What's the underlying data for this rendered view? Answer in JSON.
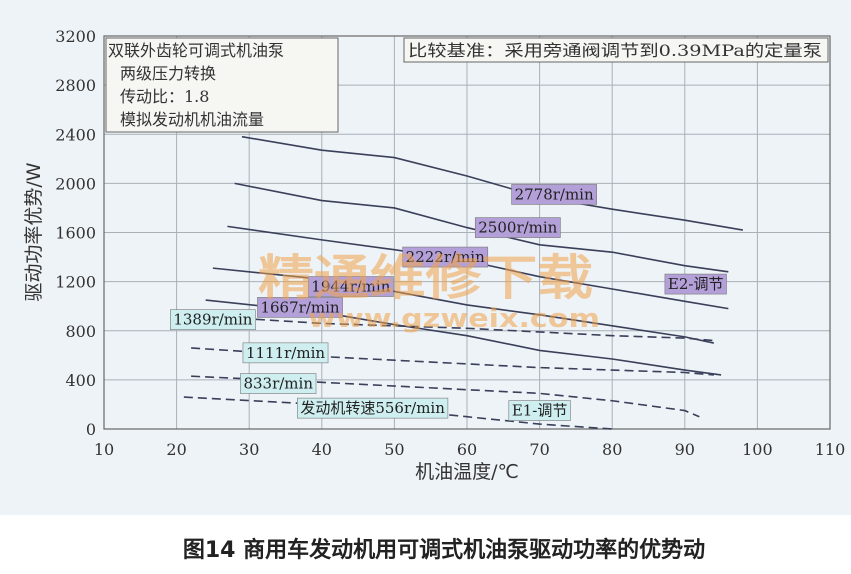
{
  "chart_data": {
    "type": "line",
    "xlabel": "机油温度/℃",
    "ylabel": "驱动功率优势/W",
    "xlim": [
      10,
      110
    ],
    "ylim": [
      0,
      3200
    ],
    "xticks": [
      10,
      20,
      30,
      40,
      50,
      60,
      70,
      80,
      90,
      100,
      110
    ],
    "yticks": [
      0,
      400,
      800,
      1200,
      1600,
      2000,
      2400,
      2800,
      3200
    ],
    "grid": true,
    "info_box_left": [
      "双联外齿轮可调式机油泵",
      "两级压力转换",
      "传动比：1.8",
      "模拟发动机机油流量"
    ],
    "info_box_right": "比较基准：采用旁通阀调节到0.39MPa的定量泵",
    "caption": "图14 商用车发动机用可调式机油泵驱动功率的优势动",
    "watermark": [
      "精通维修下载",
      "www.gzweix.com"
    ],
    "region_labels": [
      {
        "text": "E2-调节",
        "x": 91.5,
        "y": 1180,
        "color": "#b3a0d9"
      },
      {
        "text": "E1-调节",
        "x": 70,
        "y": 150,
        "color": "#cfeef0"
      }
    ],
    "series": [
      {
        "name": "2778r/min",
        "style": "solid",
        "label_at": [
          72,
          1910
        ],
        "label_color": "#b3a0d9",
        "x": [
          29,
          40,
          50,
          60,
          70,
          80,
          90,
          98
        ],
        "y": [
          2380,
          2270,
          2210,
          2060,
          1890,
          1790,
          1700,
          1620
        ]
      },
      {
        "name": "2500r/min",
        "style": "solid",
        "label_at": [
          67,
          1640
        ],
        "label_color": "#b3a0d9",
        "x": [
          28,
          40,
          50,
          60,
          70,
          80,
          90,
          96
        ],
        "y": [
          2000,
          1860,
          1800,
          1640,
          1500,
          1440,
          1330,
          1280
        ]
      },
      {
        "name": "2222r/min",
        "style": "solid",
        "label_at": [
          57,
          1400
        ],
        "label_color": "#b3a0d9",
        "x": [
          27,
          40,
          50,
          60,
          70,
          80,
          90,
          96
        ],
        "y": [
          1650,
          1540,
          1460,
          1370,
          1240,
          1140,
          1040,
          980
        ]
      },
      {
        "name": "1944r/min",
        "style": "solid",
        "label_at": [
          44,
          1160
        ],
        "label_color": "#b3a0d9",
        "x": [
          25,
          40,
          50,
          60,
          70,
          80,
          90,
          94
        ],
        "y": [
          1310,
          1220,
          1120,
          1010,
          930,
          840,
          750,
          700
        ]
      },
      {
        "name": "1667r/min",
        "style": "solid",
        "label_at": [
          37,
          990
        ],
        "label_color": "#b3a0d9",
        "x": [
          24,
          40,
          50,
          60,
          70,
          80,
          90,
          95
        ],
        "y": [
          1050,
          950,
          850,
          760,
          640,
          570,
          480,
          440
        ]
      },
      {
        "name": "1389r/min",
        "style": "dashed",
        "label_at": [
          25,
          890
        ],
        "label_color": "#cfeef0",
        "x": [
          29,
          40,
          50,
          60,
          70,
          80,
          90,
          94
        ],
        "y": [
          900,
          860,
          840,
          820,
          790,
          760,
          740,
          720
        ]
      },
      {
        "name": "1111r/min",
        "style": "dashed",
        "label_at": [
          35,
          620
        ],
        "label_color": "#cfeef0",
        "x": [
          22,
          40,
          50,
          60,
          70,
          80,
          90,
          94
        ],
        "y": [
          660,
          590,
          560,
          530,
          500,
          480,
          460,
          440
        ]
      },
      {
        "name": "833r/min",
        "style": "dashed",
        "label_at": [
          34,
          370
        ],
        "label_color": "#cfeef0",
        "x": [
          22,
          40,
          50,
          60,
          70,
          80,
          90,
          92
        ],
        "y": [
          430,
          380,
          350,
          320,
          290,
          230,
          150,
          100
        ]
      },
      {
        "name": "发动机转速556r/min",
        "style": "dashed",
        "label_at": [
          47,
          170
        ],
        "label_color": "#cfeef0",
        "x": [
          21,
          40,
          50,
          60,
          70,
          80
        ],
        "y": [
          260,
          200,
          160,
          100,
          40,
          0
        ]
      }
    ]
  }
}
